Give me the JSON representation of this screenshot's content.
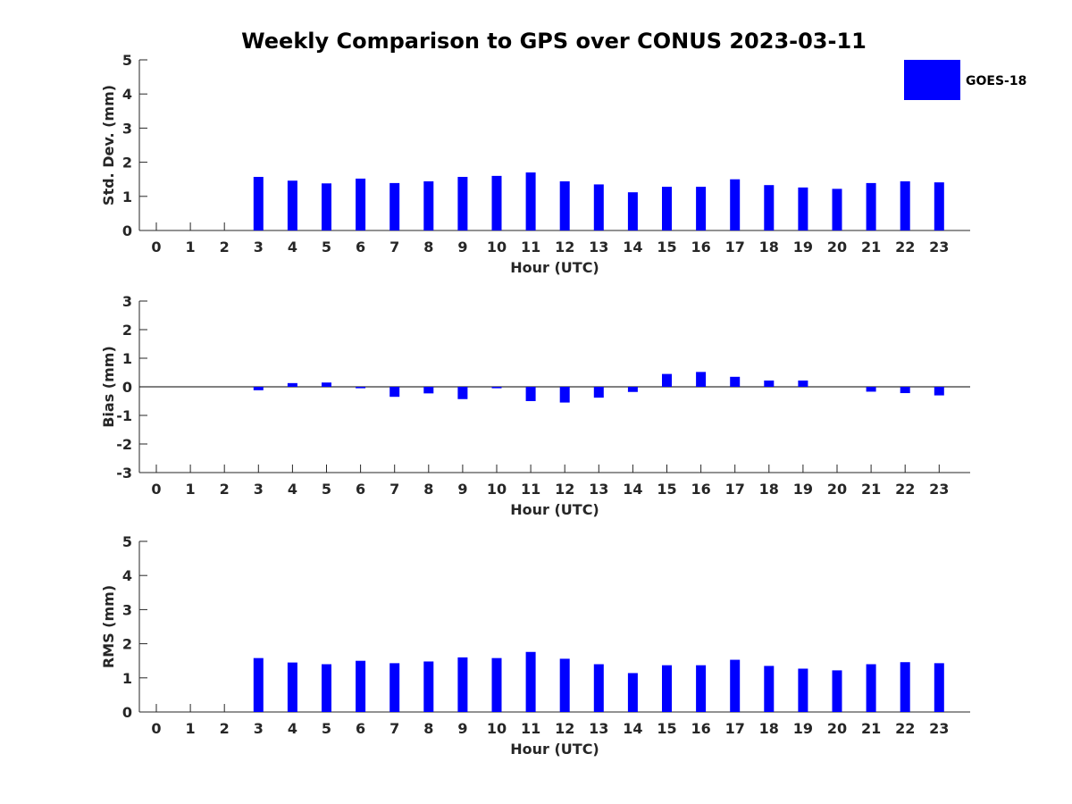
{
  "chart_data": {
    "type": "bar",
    "title": "Weekly Comparison to GPS over CONUS 2023-03-11",
    "legend": {
      "label": "GOES-18",
      "position": "top-right",
      "color": "#0000ff"
    },
    "bar_color": "#0000ff",
    "categories": [
      "0",
      "1",
      "2",
      "3",
      "4",
      "5",
      "6",
      "7",
      "8",
      "9",
      "10",
      "11",
      "12",
      "13",
      "14",
      "15",
      "16",
      "17",
      "18",
      "19",
      "20",
      "21",
      "22",
      "23"
    ],
    "panels": [
      {
        "id": "stddev",
        "ylabel": "Std. Dev. (mm)",
        "xlabel": "Hour (UTC)",
        "ylim": [
          0,
          5
        ],
        "yticks": [
          "0",
          "1",
          "2",
          "3",
          "4",
          "5"
        ],
        "series": [
          {
            "name": "GOES-18",
            "values": [
              null,
              null,
              null,
              1.57,
              1.46,
              1.38,
              1.52,
              1.39,
              1.44,
              1.57,
              1.6,
              1.7,
              1.44,
              1.35,
              1.12,
              1.28,
              1.28,
              1.5,
              1.33,
              1.26,
              1.22,
              1.39,
              1.44,
              1.41
            ]
          }
        ]
      },
      {
        "id": "bias",
        "ylabel": "Bias (mm)",
        "xlabel": "Hour (UTC)",
        "ylim": [
          -3,
          3
        ],
        "yticks": [
          "-3",
          "-2",
          "-1",
          "0",
          "1",
          "2",
          "3"
        ],
        "series": [
          {
            "name": "GOES-18",
            "values": [
              null,
              null,
              null,
              -0.12,
              0.13,
              0.15,
              -0.05,
              -0.35,
              -0.23,
              -0.43,
              -0.05,
              -0.5,
              -0.55,
              -0.38,
              -0.18,
              0.45,
              0.52,
              0.35,
              0.22,
              0.22,
              0.0,
              -0.17,
              -0.22,
              -0.3
            ]
          }
        ]
      },
      {
        "id": "rms",
        "ylabel": "RMS (mm)",
        "xlabel": "Hour (UTC)",
        "ylim": [
          0,
          5
        ],
        "yticks": [
          "0",
          "1",
          "2",
          "3",
          "4",
          "5"
        ],
        "series": [
          {
            "name": "GOES-18",
            "values": [
              null,
              null,
              null,
              1.58,
              1.45,
              1.4,
              1.5,
              1.43,
              1.48,
              1.6,
              1.58,
              1.76,
              1.56,
              1.4,
              1.14,
              1.37,
              1.37,
              1.53,
              1.35,
              1.27,
              1.22,
              1.4,
              1.46,
              1.43
            ]
          }
        ]
      }
    ]
  }
}
